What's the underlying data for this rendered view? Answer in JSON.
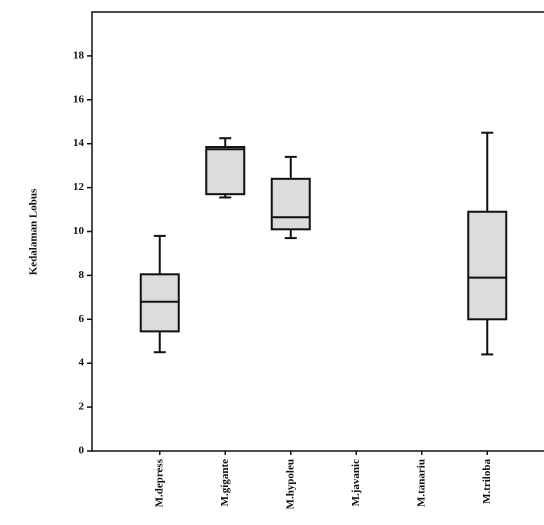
{
  "chart_data": {
    "type": "box",
    "y_label": "Kedalaman Lobus",
    "categories": [
      "M.depress",
      "M.gigante",
      "M.hypoleu",
      "M.javanic",
      "M.tanariu",
      "M.triloba"
    ],
    "min": [
      4.5,
      11.55,
      9.7,
      null,
      null,
      4.4
    ],
    "q1": [
      5.45,
      11.7,
      10.1,
      null,
      null,
      6.0
    ],
    "median": [
      6.8,
      13.75,
      10.65,
      null,
      null,
      7.9
    ],
    "q3": [
      8.05,
      13.85,
      12.4,
      null,
      null,
      10.9
    ],
    "max": [
      9.8,
      14.25,
      13.4,
      null,
      null,
      14.5
    ],
    "ylim": [
      0,
      20
    ],
    "yticks": [
      0,
      2,
      4,
      6,
      8,
      10,
      12,
      14,
      16,
      18
    ],
    "color": "#dcdcdc"
  }
}
